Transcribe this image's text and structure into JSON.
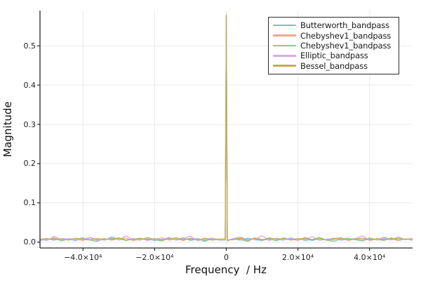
{
  "chart_data": {
    "type": "line",
    "title": "",
    "xlabel": "Frequency  / Hz",
    "ylabel": "Magnitude",
    "xlim": [
      -52000,
      52000
    ],
    "ylim": [
      -0.015,
      0.59
    ],
    "grid": true,
    "legend_position": "top-right",
    "axis_color": "#262626",
    "grid_color": "#e9e9e9",
    "peak": {
      "x": 0,
      "value": 0.578
    },
    "x_ticks": {
      "values": [
        -40000,
        -20000,
        0,
        20000,
        40000
      ],
      "labels": [
        "−4.0×10⁴",
        "−2.0×10⁴",
        "0",
        "2.0×10⁴",
        "4.0×10⁴"
      ]
    },
    "y_ticks": {
      "values": [
        0.0,
        0.1,
        0.2,
        0.3,
        0.4,
        0.5
      ],
      "labels": [
        "0.0",
        "0.1",
        "0.2",
        "0.3",
        "0.4",
        "0.5"
      ]
    },
    "x": [
      -52000,
      -50000,
      -48000,
      -46000,
      -44000,
      -42000,
      -40000,
      -38000,
      -36000,
      -34000,
      -32000,
      -30000,
      -28000,
      -26000,
      -24000,
      -22000,
      -20000,
      -18000,
      -16000,
      -14000,
      -12000,
      -10000,
      -8000,
      -6000,
      -4000,
      -2000,
      -300,
      0,
      300,
      2000,
      4000,
      6000,
      8000,
      10000,
      12000,
      14000,
      16000,
      18000,
      20000,
      22000,
      24000,
      26000,
      28000,
      30000,
      32000,
      34000,
      36000,
      38000,
      40000,
      42000,
      44000,
      46000,
      48000,
      50000,
      52000
    ],
    "series": [
      {
        "name": "Butterworth_bandpass",
        "color": "#66C2FD",
        "y": [
          0.006,
          0.008,
          0.005,
          0.009,
          0.007,
          0.004,
          0.01,
          0.006,
          0.008,
          0.005,
          0.013,
          0.007,
          0.005,
          0.009,
          0.006,
          0.008,
          0.004,
          0.007,
          0.01,
          0.005,
          0.008,
          0.006,
          0.009,
          0.004,
          0.007,
          0.006,
          0.006,
          0.578,
          0.004,
          0.008,
          0.005,
          0.01,
          0.006,
          0.004,
          0.009,
          0.007,
          0.005,
          0.011,
          0.006,
          0.008,
          0.004,
          0.009,
          0.006,
          0.01,
          0.005,
          0.007,
          0.009,
          0.004,
          0.008,
          0.006,
          0.012,
          0.007,
          0.005,
          0.008,
          0.006
        ]
      },
      {
        "name": "Chebyshev1_bandpass",
        "color": "#EDA891",
        "y": [
          0.008,
          0.005,
          0.011,
          0.006,
          0.009,
          0.007,
          0.004,
          0.012,
          0.006,
          0.009,
          0.005,
          0.008,
          0.01,
          0.004,
          0.007,
          0.009,
          0.006,
          0.011,
          0.005,
          0.008,
          0.004,
          0.01,
          0.006,
          0.008,
          0.005,
          0.007,
          0.007,
          0.577,
          0.005,
          0.006,
          0.009,
          0.004,
          0.011,
          0.007,
          0.005,
          0.01,
          0.006,
          0.008,
          0.004,
          0.012,
          0.006,
          0.009,
          0.005,
          0.007,
          0.01,
          0.004,
          0.008,
          0.006,
          0.011,
          0.005,
          0.007,
          0.009,
          0.004,
          0.008,
          0.005
        ]
      },
      {
        "name": "Chebyshev1_bandpass",
        "color": "#8BC895",
        "y": [
          0.004,
          0.007,
          0.009,
          0.003,
          0.008,
          0.006,
          0.011,
          0.005,
          0.002,
          0.009,
          0.006,
          0.01,
          0.004,
          0.008,
          0.005,
          0.012,
          0.006,
          0.003,
          0.009,
          0.007,
          0.011,
          0.004,
          0.008,
          0.002,
          0.009,
          0.005,
          0.005,
          0.576,
          0.003,
          0.009,
          0.006,
          0.002,
          0.01,
          0.005,
          0.008,
          0.003,
          0.011,
          0.006,
          0.009,
          0.004,
          0.007,
          0.012,
          0.005,
          0.002,
          0.008,
          0.01,
          0.006,
          0.003,
          0.009,
          0.007,
          0.004,
          0.011,
          0.006,
          0.008,
          0.005
        ]
      },
      {
        "name": "Elliptic_bandpass",
        "color": "#DAAAE8",
        "y": [
          0.007,
          0.004,
          0.015,
          0.006,
          0.009,
          0.005,
          0.008,
          0.011,
          0.004,
          0.007,
          0.01,
          0.005,
          0.016,
          0.006,
          0.009,
          0.004,
          0.008,
          0.006,
          0.012,
          0.005,
          0.009,
          0.015,
          0.004,
          0.007,
          0.01,
          0.006,
          0.006,
          0.577,
          0.004,
          0.009,
          0.013,
          0.005,
          0.008,
          0.016,
          0.004,
          0.009,
          0.006,
          0.01,
          0.005,
          0.007,
          0.014,
          0.004,
          0.008,
          0.006,
          0.011,
          0.005,
          0.009,
          0.016,
          0.004,
          0.007,
          0.01,
          0.005,
          0.013,
          0.006,
          0.008
        ]
      },
      {
        "name": "Bessel_bandpass",
        "color": "#C4AD55",
        "y": [
          0.007,
          0.009,
          0.006,
          0.008,
          0.005,
          0.01,
          0.007,
          0.005,
          0.009,
          0.006,
          0.008,
          0.011,
          0.005,
          0.007,
          0.01,
          0.006,
          0.009,
          0.005,
          0.008,
          0.011,
          0.006,
          0.009,
          0.005,
          0.01,
          0.006,
          0.008,
          0.008,
          0.579,
          0.005,
          0.007,
          0.01,
          0.006,
          0.009,
          0.005,
          0.011,
          0.007,
          0.009,
          0.005,
          0.008,
          0.01,
          0.006,
          0.008,
          0.005,
          0.009,
          0.011,
          0.006,
          0.008,
          0.01,
          0.005,
          0.009,
          0.006,
          0.008,
          0.01,
          0.007,
          0.009
        ]
      }
    ]
  }
}
